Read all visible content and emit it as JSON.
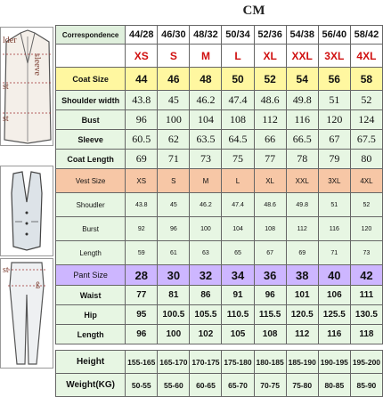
{
  "unit": "CM",
  "header": {
    "label": "Correspondence",
    "cols": [
      "44/28",
      "46/30",
      "48/32",
      "50/34",
      "52/36",
      "54/38",
      "56/40",
      "58/42"
    ]
  },
  "illustrations": {
    "coat_labels": [
      "lder",
      "st",
      "st",
      "sleeve"
    ],
    "vest_label": "",
    "pant_labels": [
      "st",
      "ß"
    ]
  },
  "coat": {
    "letter_row": [
      "XS",
      "S",
      "M",
      "L",
      "XL",
      "XXL",
      "3XL",
      "4XL"
    ],
    "size": {
      "label": "Coat Size",
      "values": [
        "44",
        "46",
        "48",
        "50",
        "52",
        "54",
        "56",
        "58"
      ]
    },
    "rows": [
      {
        "label": "Shoulder width",
        "values": [
          "43.8",
          "45",
          "46.2",
          "47.4",
          "48.6",
          "49.8",
          "51",
          "52"
        ]
      },
      {
        "label": "Bust",
        "values": [
          "96",
          "100",
          "104",
          "108",
          "112",
          "116",
          "120",
          "124"
        ]
      },
      {
        "label": "Sleeve",
        "values": [
          "60.5",
          "62",
          "63.5",
          "64.5",
          "66",
          "66.5",
          "67",
          "67.5"
        ]
      },
      {
        "label": "Coat Length",
        "values": [
          "69",
          "71",
          "73",
          "75",
          "77",
          "78",
          "79",
          "80"
        ]
      }
    ]
  },
  "vest": {
    "size": {
      "label": "Vest Size",
      "values": [
        "XS",
        "S",
        "M",
        "L",
        "XL",
        "XXL",
        "3XL",
        "4XL"
      ]
    },
    "rows": [
      {
        "label": "Shoudler",
        "values": [
          "43.8",
          "45",
          "46.2",
          "47.4",
          "48.6",
          "49.8",
          "51",
          "52"
        ]
      },
      {
        "label": "Burst",
        "values": [
          "92",
          "96",
          "100",
          "104",
          "108",
          "112",
          "116",
          "120"
        ]
      },
      {
        "label": "Length",
        "values": [
          "59",
          "61",
          "63",
          "65",
          "67",
          "69",
          "71",
          "73"
        ]
      }
    ]
  },
  "pant": {
    "size": {
      "label": "Pant Size",
      "values": [
        "28",
        "30",
        "32",
        "34",
        "36",
        "38",
        "40",
        "42"
      ]
    },
    "rows": [
      {
        "label": "Waist",
        "values": [
          "77",
          "81",
          "86",
          "91",
          "96",
          "101",
          "106",
          "111"
        ]
      },
      {
        "label": "Hip",
        "values": [
          "95",
          "100.5",
          "105.5",
          "110.5",
          "115.5",
          "120.5",
          "125.5",
          "130.5"
        ]
      },
      {
        "label": "Length",
        "values": [
          "96",
          "100",
          "102",
          "105",
          "108",
          "112",
          "116",
          "118"
        ]
      }
    ]
  },
  "body": {
    "height": {
      "label": "Height",
      "values": [
        "155-165",
        "165-170",
        "170-175",
        "175-180",
        "180-185",
        "185-190",
        "190-195",
        "195-200"
      ]
    },
    "weight": {
      "label": "Weight(KG)",
      "values": [
        "50-55",
        "55-60",
        "60-65",
        "65-70",
        "70-75",
        "75-80",
        "80-85",
        "85-90"
      ]
    }
  }
}
